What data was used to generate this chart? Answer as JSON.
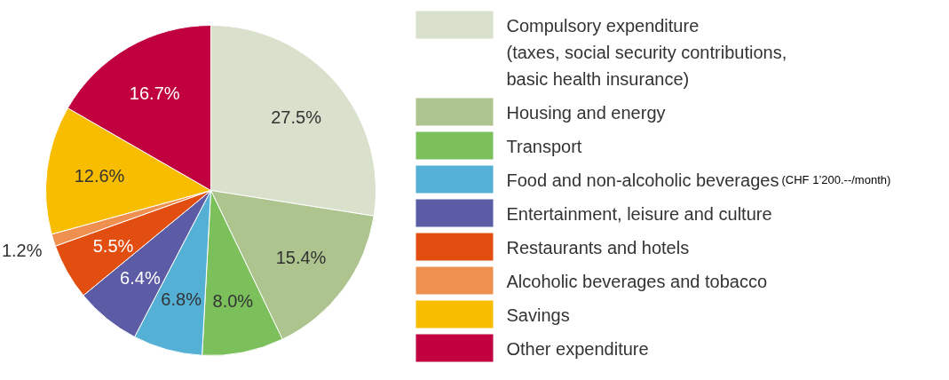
{
  "chart_data": {
    "type": "pie",
    "categories": [
      "Compulsory expenditure\n(taxes, social security contributions,\nbasic health insurance)",
      "Housing and energy",
      "Transport",
      "Food and non-alcoholic beverages",
      "Entertainment, leisure and culture",
      "Restaurants and hotels",
      "Alcoholic beverages and tobacco",
      "Savings",
      "Other expenditure"
    ],
    "values": [
      27.5,
      15.4,
      8.0,
      6.8,
      6.4,
      5.5,
      1.2,
      12.6,
      16.7
    ],
    "value_labels": [
      "27.5%",
      "15.4%",
      "8.0%",
      "6.8%",
      "6.4%",
      "5.5%",
      "1.2%",
      "12.6%",
      "16.7%"
    ],
    "colors": [
      "#d9e0cc",
      "#adc48f",
      "#7cc05c",
      "#55b0d6",
      "#5b5ba6",
      "#e24e10",
      "#ef9050",
      "#f9bd00",
      "#c0003f"
    ],
    "annotations": [
      "(CHF 1’200.--/month)"
    ],
    "legend": "right"
  }
}
